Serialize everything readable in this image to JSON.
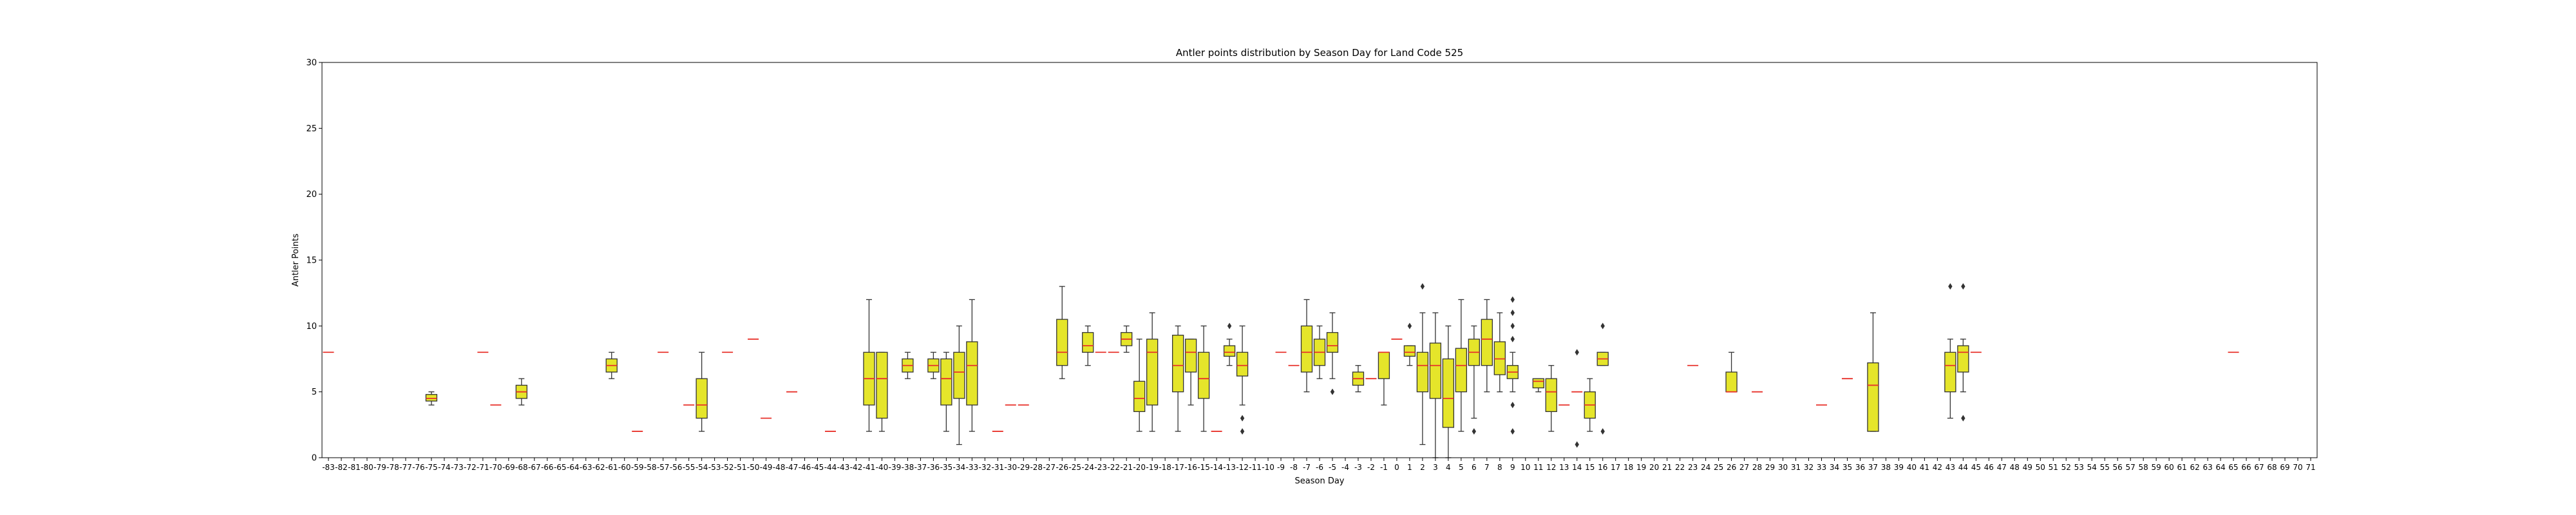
{
  "chart_data": {
    "type": "box",
    "title": "Antler points distribution by Season Day for Land Code 525",
    "xlabel": "Season Day",
    "ylabel": "Antler Points",
    "ylim": [
      0,
      30
    ],
    "yticks": [
      0,
      5,
      10,
      15,
      20,
      25,
      30
    ],
    "x_range": [
      -83,
      71
    ],
    "grid": false,
    "colors": {
      "box_fill": "#e5e52a",
      "box_edge": "#333333",
      "median": "#e8322b",
      "axes": "#000000"
    },
    "boxes": [
      {
        "day": -83,
        "q1": 8,
        "med": 8,
        "q3": 8,
        "lo": 8,
        "hi": 8
      },
      {
        "day": -75,
        "q1": 4.3,
        "med": 4.5,
        "q3": 4.8,
        "lo": 4,
        "hi": 5
      },
      {
        "day": -71,
        "q1": 8,
        "med": 8,
        "q3": 8,
        "lo": 8,
        "hi": 8
      },
      {
        "day": -70,
        "q1": 4,
        "med": 4,
        "q3": 4,
        "lo": 4,
        "hi": 4
      },
      {
        "day": -68,
        "q1": 4.5,
        "med": 5,
        "q3": 5.5,
        "lo": 4,
        "hi": 6
      },
      {
        "day": -61,
        "q1": 6.5,
        "med": 7,
        "q3": 7.5,
        "lo": 6,
        "hi": 8
      },
      {
        "day": -59,
        "q1": 2,
        "med": 2,
        "q3": 2,
        "lo": 2,
        "hi": 2
      },
      {
        "day": -57,
        "q1": 8,
        "med": 8,
        "q3": 8,
        "lo": 8,
        "hi": 8
      },
      {
        "day": -55,
        "q1": 4,
        "med": 4,
        "q3": 4,
        "lo": 4,
        "hi": 4
      },
      {
        "day": -54,
        "q1": 3,
        "med": 4,
        "q3": 6,
        "lo": 2,
        "hi": 8
      },
      {
        "day": -52,
        "q1": 8,
        "med": 8,
        "q3": 8,
        "lo": 8,
        "hi": 8
      },
      {
        "day": -50,
        "q1": 9,
        "med": 9,
        "q3": 9,
        "lo": 9,
        "hi": 9
      },
      {
        "day": -49,
        "q1": 3,
        "med": 3,
        "q3": 3,
        "lo": 3,
        "hi": 3
      },
      {
        "day": -47,
        "q1": 5,
        "med": 5,
        "q3": 5,
        "lo": 5,
        "hi": 5
      },
      {
        "day": -44,
        "q1": 2,
        "med": 2,
        "q3": 2,
        "lo": 2,
        "hi": 2
      },
      {
        "day": -41,
        "q1": 4,
        "med": 6,
        "q3": 8,
        "lo": 2,
        "hi": 12
      },
      {
        "day": -40,
        "q1": 3,
        "med": 6,
        "q3": 8,
        "lo": 2,
        "hi": 8
      },
      {
        "day": -38,
        "q1": 6.5,
        "med": 7,
        "q3": 7.5,
        "lo": 6,
        "hi": 8
      },
      {
        "day": -36,
        "q1": 6.5,
        "med": 7,
        "q3": 7.5,
        "lo": 6,
        "hi": 8
      },
      {
        "day": -35,
        "q1": 4,
        "med": 6,
        "q3": 7.5,
        "lo": 2,
        "hi": 8
      },
      {
        "day": -34,
        "q1": 4.5,
        "med": 6.5,
        "q3": 8,
        "lo": 1,
        "hi": 10
      },
      {
        "day": -33,
        "q1": 4,
        "med": 7,
        "q3": 8.8,
        "lo": 2,
        "hi": 12
      },
      {
        "day": -31,
        "q1": 2,
        "med": 2,
        "q3": 2,
        "lo": 2,
        "hi": 2
      },
      {
        "day": -30,
        "q1": 4,
        "med": 4,
        "q3": 4,
        "lo": 4,
        "hi": 4
      },
      {
        "day": -29,
        "q1": 4,
        "med": 4,
        "q3": 4,
        "lo": 4,
        "hi": 4
      },
      {
        "day": -26,
        "q1": 7,
        "med": 8,
        "q3": 10.5,
        "lo": 6,
        "hi": 13
      },
      {
        "day": -24,
        "q1": 8,
        "med": 8.5,
        "q3": 9.5,
        "lo": 7,
        "hi": 10
      },
      {
        "day": -23,
        "q1": 8,
        "med": 8,
        "q3": 8,
        "lo": 8,
        "hi": 8
      },
      {
        "day": -22,
        "q1": 8,
        "med": 8,
        "q3": 8,
        "lo": 8,
        "hi": 8
      },
      {
        "day": -21,
        "q1": 8.5,
        "med": 9,
        "q3": 9.5,
        "lo": 8,
        "hi": 10
      },
      {
        "day": -20,
        "q1": 3.5,
        "med": 4.5,
        "q3": 5.8,
        "lo": 2,
        "hi": 9
      },
      {
        "day": -19,
        "q1": 4,
        "med": 8,
        "q3": 9,
        "lo": 2,
        "hi": 11
      },
      {
        "day": -17,
        "q1": 5,
        "med": 7,
        "q3": 9.3,
        "lo": 2,
        "hi": 10
      },
      {
        "day": -16,
        "q1": 6.5,
        "med": 8,
        "q3": 9,
        "lo": 4,
        "hi": 9
      },
      {
        "day": -15,
        "q1": 4.5,
        "med": 6,
        "q3": 8,
        "lo": 2,
        "hi": 10
      },
      {
        "day": -14,
        "q1": 2,
        "med": 2,
        "q3": 2,
        "lo": 2,
        "hi": 2
      },
      {
        "day": -13,
        "q1": 7.7,
        "med": 8,
        "q3": 8.5,
        "lo": 7,
        "hi": 9,
        "fliers": [
          10
        ]
      },
      {
        "day": -12,
        "q1": 6.2,
        "med": 7,
        "q3": 8,
        "lo": 4,
        "hi": 10,
        "fliers": [
          3,
          2
        ]
      },
      {
        "day": -9,
        "q1": 8,
        "med": 8,
        "q3": 8,
        "lo": 8,
        "hi": 8
      },
      {
        "day": -8,
        "q1": 7,
        "med": 7,
        "q3": 7,
        "lo": 7,
        "hi": 7
      },
      {
        "day": -7,
        "q1": 6.5,
        "med": 8,
        "q3": 10,
        "lo": 5,
        "hi": 12
      },
      {
        "day": -6,
        "q1": 7,
        "med": 8,
        "q3": 9,
        "lo": 6,
        "hi": 10
      },
      {
        "day": -5,
        "q1": 8,
        "med": 8.5,
        "q3": 9.5,
        "lo": 6,
        "hi": 11,
        "fliers": [
          5
        ]
      },
      {
        "day": -3,
        "q1": 5.5,
        "med": 6,
        "q3": 6.5,
        "lo": 5,
        "hi": 7
      },
      {
        "day": -2,
        "q1": 6,
        "med": 6,
        "q3": 6,
        "lo": 6,
        "hi": 6
      },
      {
        "day": -1,
        "q1": 6,
        "med": 8,
        "q3": 8,
        "lo": 4,
        "hi": 8
      },
      {
        "day": 0,
        "q1": 9,
        "med": 9,
        "q3": 9,
        "lo": 9,
        "hi": 9
      },
      {
        "day": 1,
        "q1": 7.7,
        "med": 8,
        "q3": 8.5,
        "lo": 7,
        "hi": 8.5,
        "fliers": [
          10
        ]
      },
      {
        "day": 2,
        "q1": 5,
        "med": 7,
        "q3": 8,
        "lo": 1,
        "hi": 11,
        "fliers": [
          13
        ]
      },
      {
        "day": 3,
        "q1": 4.5,
        "med": 7,
        "q3": 8.7,
        "lo": 0,
        "hi": 11
      },
      {
        "day": 4,
        "q1": 2.3,
        "med": 4.5,
        "q3": 7.5,
        "lo": 0,
        "hi": 10
      },
      {
        "day": 5,
        "q1": 5,
        "med": 7,
        "q3": 8.3,
        "lo": 2,
        "hi": 12
      },
      {
        "day": 6,
        "q1": 7,
        "med": 8,
        "q3": 9,
        "lo": 3,
        "hi": 10,
        "fliers": [
          2
        ]
      },
      {
        "day": 7,
        "q1": 7,
        "med": 9,
        "q3": 10.5,
        "lo": 5,
        "hi": 12
      },
      {
        "day": 8,
        "q1": 6.3,
        "med": 7.5,
        "q3": 8.8,
        "lo": 5,
        "hi": 11
      },
      {
        "day": 9,
        "q1": 6,
        "med": 6.5,
        "q3": 7,
        "lo": 5,
        "hi": 8,
        "fliers": [
          12,
          11,
          10,
          9,
          4,
          2
        ]
      },
      {
        "day": 11,
        "q1": 5.3,
        "med": 5.8,
        "q3": 6,
        "lo": 5,
        "hi": 6
      },
      {
        "day": 12,
        "q1": 3.5,
        "med": 5,
        "q3": 6,
        "lo": 2,
        "hi": 7
      },
      {
        "day": 13,
        "q1": 4,
        "med": 4,
        "q3": 4,
        "lo": 4,
        "hi": 4
      },
      {
        "day": 14,
        "q1": 5,
        "med": 5,
        "q3": 5,
        "lo": 5,
        "hi": 5,
        "fliers": [
          8,
          1
        ]
      },
      {
        "day": 15,
        "q1": 3,
        "med": 4,
        "q3": 5,
        "lo": 2,
        "hi": 6
      },
      {
        "day": 16,
        "q1": 7,
        "med": 7.5,
        "q3": 8,
        "lo": 7,
        "hi": 8,
        "fliers": [
          10,
          2
        ]
      },
      {
        "day": 23,
        "q1": 7,
        "med": 7,
        "q3": 7,
        "lo": 7,
        "hi": 7
      },
      {
        "day": 26,
        "q1": 5,
        "med": 5,
        "q3": 6.5,
        "lo": 5,
        "hi": 8
      },
      {
        "day": 28,
        "q1": 5,
        "med": 5,
        "q3": 5,
        "lo": 5,
        "hi": 5
      },
      {
        "day": 33,
        "q1": 4,
        "med": 4,
        "q3": 4,
        "lo": 4,
        "hi": 4
      },
      {
        "day": 35,
        "q1": 6,
        "med": 6,
        "q3": 6,
        "lo": 6,
        "hi": 6
      },
      {
        "day": 37,
        "q1": 2,
        "med": 5.5,
        "q3": 7.2,
        "lo": 2,
        "hi": 11
      },
      {
        "day": 43,
        "q1": 5,
        "med": 7,
        "q3": 8,
        "lo": 3,
        "hi": 9,
        "fliers": [
          13
        ]
      },
      {
        "day": 44,
        "q1": 6.5,
        "med": 8,
        "q3": 8.5,
        "lo": 5,
        "hi": 9,
        "fliers": [
          13,
          3
        ]
      },
      {
        "day": 45,
        "q1": 8,
        "med": 8,
        "q3": 8,
        "lo": 8,
        "hi": 8
      },
      {
        "day": 65,
        "q1": 8,
        "med": 8,
        "q3": 8,
        "lo": 8,
        "hi": 8
      }
    ]
  }
}
